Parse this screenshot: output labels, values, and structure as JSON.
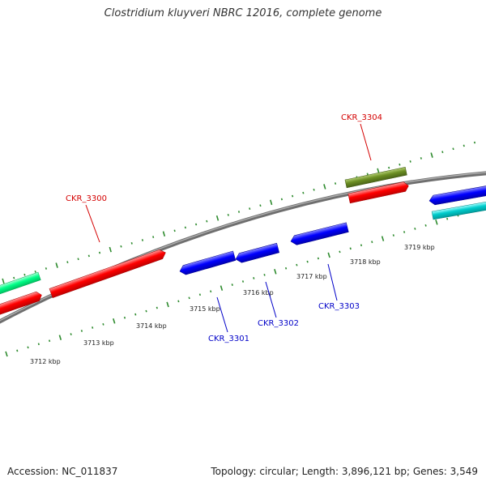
{
  "title": "Clostridium kluyveri NBRC 12016, complete genome",
  "footer": {
    "accession": "Accession: NC_011837",
    "topology": "Topology: circular; Length: 3,896,121 bp; Genes: 3,549"
  },
  "colors": {
    "backbone": "#8a8a8a",
    "tick": "#2e8b2e",
    "forward_label": "#d40000",
    "reverse_label": "#0000c8",
    "cds_red": "#ff0000",
    "cds_blue": "#0000ff",
    "cds_olive": "#6b8e23",
    "cds_teal": "#00c8c8",
    "cds_spring": "#00ff80"
  },
  "scale_labels": [
    "3712 kbp",
    "3713 kbp",
    "3714 kbp",
    "3715 kbp",
    "3716 kbp",
    "3717 kbp",
    "3718 kbp",
    "3719 kbp"
  ],
  "gene_labels": [
    {
      "text": "CKR_3300",
      "strand": "forward"
    },
    {
      "text": "CKR_3304",
      "strand": "forward"
    },
    {
      "text": "CKR_3301",
      "strand": "reverse"
    },
    {
      "text": "CKR_3302",
      "strand": "reverse"
    },
    {
      "text": "CKR_3303",
      "strand": "reverse"
    }
  ]
}
